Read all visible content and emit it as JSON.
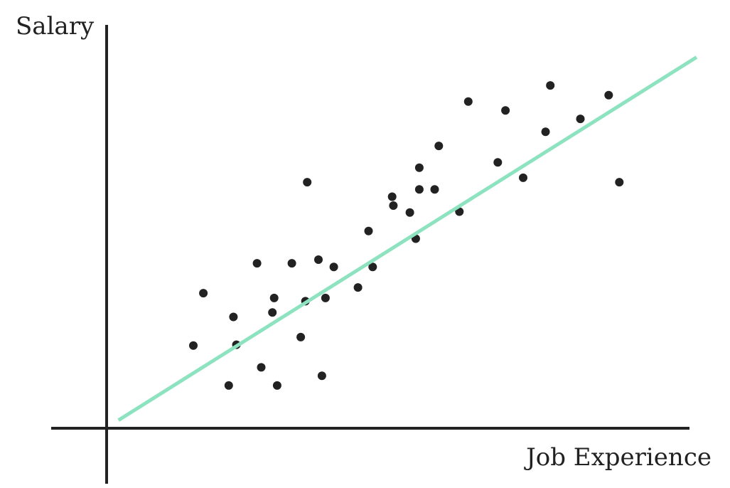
{
  "colors": {
    "axis": "#222222",
    "points": "#222222",
    "trendline": "#8de3c0",
    "background": "#ffffff"
  },
  "chart_data": {
    "type": "scatter",
    "title": "",
    "xlabel": "Job Experience",
    "ylabel": "Salary",
    "xlim": [
      0,
      100
    ],
    "ylim": [
      0,
      100
    ],
    "grid": false,
    "legend": "none",
    "tick_labels": false,
    "points": [
      {
        "x": 14.7,
        "y": 20.5
      },
      {
        "x": 16.4,
        "y": 33.5
      },
      {
        "x": 20.7,
        "y": 10.6
      },
      {
        "x": 21.5,
        "y": 27.6
      },
      {
        "x": 22.0,
        "y": 20.7
      },
      {
        "x": 25.5,
        "y": 40.9
      },
      {
        "x": 26.2,
        "y": 15.1
      },
      {
        "x": 28.1,
        "y": 28.7
      },
      {
        "x": 28.4,
        "y": 32.3
      },
      {
        "x": 28.9,
        "y": 10.6
      },
      {
        "x": 31.4,
        "y": 40.9
      },
      {
        "x": 32.9,
        "y": 22.6
      },
      {
        "x": 33.7,
        "y": 31.5
      },
      {
        "x": 34.0,
        "y": 61.0
      },
      {
        "x": 35.9,
        "y": 41.8
      },
      {
        "x": 36.5,
        "y": 13.0
      },
      {
        "x": 37.1,
        "y": 32.3
      },
      {
        "x": 38.5,
        "y": 40.0
      },
      {
        "x": 42.6,
        "y": 34.9
      },
      {
        "x": 44.4,
        "y": 48.9
      },
      {
        "x": 45.1,
        "y": 40.0
      },
      {
        "x": 48.4,
        "y": 57.4
      },
      {
        "x": 48.6,
        "y": 55.2
      },
      {
        "x": 51.4,
        "y": 53.5
      },
      {
        "x": 52.4,
        "y": 47.0
      },
      {
        "x": 53.0,
        "y": 64.6
      },
      {
        "x": 53.0,
        "y": 59.2
      },
      {
        "x": 55.6,
        "y": 59.2
      },
      {
        "x": 56.3,
        "y": 70.0
      },
      {
        "x": 59.8,
        "y": 53.7
      },
      {
        "x": 61.3,
        "y": 81.0
      },
      {
        "x": 66.3,
        "y": 65.9
      },
      {
        "x": 67.6,
        "y": 78.8
      },
      {
        "x": 70.6,
        "y": 62.1
      },
      {
        "x": 74.4,
        "y": 73.5
      },
      {
        "x": 75.2,
        "y": 85.0
      },
      {
        "x": 80.3,
        "y": 76.7
      },
      {
        "x": 85.1,
        "y": 82.6
      },
      {
        "x": 86.9,
        "y": 61.0
      }
    ],
    "trendline": {
      "x": [
        2,
        100
      ],
      "y": [
        2,
        92
      ]
    }
  }
}
